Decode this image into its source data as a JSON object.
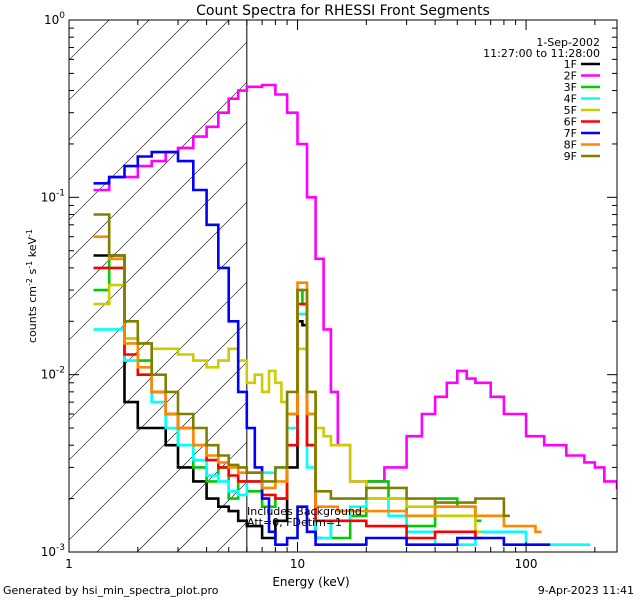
{
  "chart_data": {
    "type": "line",
    "title": "Count Spectra for RHESSI Front Segments",
    "xlabel": "Energy (keV)",
    "ylabel_main": "counts cm",
    "ylabel_sup1": "-2",
    "ylabel_mid": " s",
    "ylabel_sup2": "-1",
    "ylabel_end": " keV",
    "ylabel_sup3": "-1",
    "xscale": "log",
    "yscale": "log",
    "xlim": [
      1,
      250
    ],
    "ylim": [
      0.001,
      1
    ],
    "x_ticks": [
      {
        "value": 1,
        "label": "1"
      },
      {
        "value": 10,
        "label": "10"
      },
      {
        "value": 100,
        "label": "100"
      }
    ],
    "y_ticks": [
      {
        "value": 0.001,
        "base": "10",
        "exp": "-3"
      },
      {
        "value": 0.01,
        "base": "10",
        "exp": "-2"
      },
      {
        "value": 0.1,
        "base": "10",
        "exp": "-1"
      },
      {
        "value": 1,
        "base": "10",
        "exp": "0"
      }
    ],
    "date": "1-Sep-2002",
    "time_range": "11:27:00 to 11:28:00",
    "attenuator_boundary_kev": 6,
    "annotation_line1": "Includes Background",
    "annotation_line2": "Att=0, FDetim=1",
    "series": [
      {
        "name": "1F",
        "color": "#000000",
        "x": [
          1.28,
          1.5,
          1.75,
          2.0,
          2.3,
          2.65,
          3.0,
          3.5,
          4.0,
          4.5,
          5.0,
          5.5,
          6.0,
          7.0,
          8.0,
          9.0,
          10.0,
          10.5,
          11.0,
          12.0
        ],
        "y": [
          0.047,
          0.047,
          0.007,
          0.005,
          0.005,
          0.004,
          0.003,
          0.0025,
          0.002,
          0.0018,
          0.0017,
          0.0015,
          0.0014,
          0.0012,
          0.0015,
          0.003,
          0.02,
          0.019,
          0.004,
          0.0012
        ]
      },
      {
        "name": "2F",
        "color": "#ff00ff",
        "x": [
          1.28,
          1.5,
          1.75,
          2.0,
          2.3,
          2.65,
          3.0,
          3.5,
          4.0,
          4.5,
          5.0,
          5.5,
          6.0,
          7.0,
          8.0,
          9.0,
          10.0,
          11.0,
          12.0,
          13.0,
          14.0,
          15.0,
          17.0,
          20.0,
          24.0,
          30.0,
          35.0,
          40.0,
          45.0,
          50.0,
          55.0,
          60.0,
          70.0,
          80.0,
          100.0,
          120.0,
          150.0,
          180.0,
          200.0,
          220.0,
          250.0
        ],
        "y": [
          0.11,
          0.13,
          0.13,
          0.15,
          0.16,
          0.18,
          0.19,
          0.22,
          0.25,
          0.3,
          0.36,
          0.4,
          0.42,
          0.43,
          0.38,
          0.3,
          0.2,
          0.1,
          0.045,
          0.018,
          0.008,
          0.004,
          0.0025,
          0.0025,
          0.003,
          0.0045,
          0.006,
          0.0075,
          0.009,
          0.0105,
          0.0095,
          0.009,
          0.0075,
          0.006,
          0.0045,
          0.004,
          0.0035,
          0.0032,
          0.003,
          0.0025,
          0.0023
        ]
      },
      {
        "name": "3F",
        "color": "#00cc00",
        "x": [
          1.28,
          1.5,
          1.75,
          2.0,
          2.3,
          2.65,
          3.0,
          3.5,
          4.0,
          4.5,
          5.0,
          5.5,
          6.0,
          7.0,
          8.0,
          9.0,
          10.0,
          10.5,
          11.0,
          12.0,
          14.0,
          17.0,
          20.0,
          25.0,
          30.0,
          40.0,
          50.0,
          60.0
        ],
        "y": [
          0.03,
          0.045,
          0.016,
          0.012,
          0.008,
          0.006,
          0.004,
          0.003,
          0.0025,
          0.003,
          0.002,
          0.0025,
          0.0022,
          0.0018,
          0.002,
          0.006,
          0.03,
          0.025,
          0.006,
          0.0015,
          0.0012,
          0.0016,
          0.0025,
          0.002,
          0.0014,
          0.002,
          0.0018,
          0.0015
        ]
      },
      {
        "name": "4F",
        "color": "#00ffff",
        "x": [
          1.28,
          1.5,
          1.75,
          2.0,
          2.3,
          2.65,
          3.0,
          3.5,
          4.0,
          4.5,
          5.0,
          5.5,
          6.0,
          7.0,
          8.0,
          9.0,
          10.0,
          11.0,
          12.0,
          14.0,
          17.0,
          20.0,
          25.0,
          30.0,
          40.0,
          60.0,
          100.0,
          150.0,
          180.0
        ],
        "y": [
          0.018,
          0.018,
          0.012,
          0.01,
          0.007,
          0.005,
          0.004,
          0.0033,
          0.0027,
          0.0025,
          0.0022,
          0.0021,
          0.0025,
          0.0028,
          0.003,
          0.005,
          0.022,
          0.003,
          0.0012,
          0.0015,
          0.0018,
          0.002,
          0.0016,
          0.0013,
          0.0011,
          0.0013,
          0.0011,
          0.0011,
          0.0011
        ]
      },
      {
        "name": "5F",
        "color": "#cccc00",
        "x": [
          1.28,
          1.5,
          1.75,
          2.0,
          2.3,
          2.65,
          3.0,
          3.5,
          4.0,
          4.5,
          5.0,
          5.5,
          6.0,
          6.5,
          7.0,
          7.5,
          8.0,
          8.5,
          9.0,
          10.0,
          11.0,
          12.0,
          13.0,
          14.0,
          17.0,
          20.0,
          30.0,
          40.0,
          60.0
        ],
        "y": [
          0.025,
          0.032,
          0.016,
          0.015,
          0.014,
          0.014,
          0.013,
          0.012,
          0.011,
          0.012,
          0.014,
          0.012,
          0.009,
          0.01,
          0.008,
          0.0105,
          0.009,
          0.007,
          0.006,
          0.014,
          0.008,
          0.005,
          0.0045,
          0.004,
          0.0025,
          0.002,
          0.0018,
          0.0016,
          0.0013
        ]
      },
      {
        "name": "6F",
        "color": "#ff0000",
        "x": [
          1.28,
          1.5,
          1.75,
          2.0,
          2.3,
          2.65,
          3.0,
          3.5,
          4.0,
          4.5,
          5.0,
          5.5,
          6.0,
          7.0,
          8.0,
          9.0,
          10.0,
          11.0,
          12.0,
          15.0,
          20.0,
          25.0,
          30.0,
          40.0,
          60.0
        ],
        "y": [
          0.04,
          0.04,
          0.013,
          0.01,
          0.008,
          0.006,
          0.005,
          0.004,
          0.0033,
          0.003,
          0.0027,
          0.0025,
          0.0025,
          0.0021,
          0.002,
          0.004,
          0.025,
          0.004,
          0.0015,
          0.0015,
          0.0014,
          0.0014,
          0.0012,
          0.0013,
          0.0012
        ]
      },
      {
        "name": "7F",
        "color": "#0000ff",
        "x": [
          1.28,
          1.5,
          1.75,
          2.0,
          2.3,
          2.65,
          3.0,
          3.5,
          4.0,
          4.5,
          5.0,
          5.5,
          6.0,
          6.5,
          7.0,
          7.5,
          8.0,
          9.0,
          10.0,
          11.0,
          12.0,
          14.0,
          20.0,
          30.0,
          50.0,
          80.0,
          120.0
        ],
        "y": [
          0.12,
          0.13,
          0.15,
          0.17,
          0.18,
          0.18,
          0.16,
          0.11,
          0.07,
          0.04,
          0.02,
          0.008,
          0.005,
          0.003,
          0.002,
          0.0013,
          0.0011,
          0.0012,
          0.0018,
          0.0013,
          0.0011,
          0.0011,
          0.0012,
          0.0011,
          0.0012,
          0.0011,
          0.0011
        ]
      },
      {
        "name": "8F",
        "color": "#ff8800",
        "x": [
          1.28,
          1.5,
          1.75,
          2.0,
          2.3,
          2.65,
          3.0,
          3.5,
          4.0,
          4.5,
          5.0,
          5.5,
          6.0,
          7.0,
          8.0,
          9.0,
          10.0,
          11.0,
          12.0,
          15.0,
          20.0,
          30.0,
          40.0,
          60.0,
          80.0,
          110.0
        ],
        "y": [
          0.06,
          0.045,
          0.015,
          0.011,
          0.008,
          0.006,
          0.005,
          0.004,
          0.0035,
          0.0032,
          0.003,
          0.0028,
          0.0028,
          0.0023,
          0.0025,
          0.006,
          0.033,
          0.006,
          0.0018,
          0.0017,
          0.0017,
          0.0016,
          0.0018,
          0.0016,
          0.0014,
          0.0013
        ]
      },
      {
        "name": "9F",
        "color": "#808000",
        "x": [
          1.28,
          1.5,
          1.75,
          2.0,
          2.3,
          2.65,
          3.0,
          3.5,
          4.0,
          4.5,
          5.0,
          5.5,
          6.0,
          7.0,
          8.0,
          9.0,
          10.0,
          11.0,
          12.0,
          14.0,
          20.0,
          30.0,
          40.0,
          60.0,
          80.0
        ],
        "y": [
          0.08,
          0.047,
          0.02,
          0.015,
          0.01,
          0.008,
          0.006,
          0.005,
          0.004,
          0.0035,
          0.0031,
          0.003,
          0.0028,
          0.0025,
          0.003,
          0.008,
          0.03,
          0.008,
          0.0022,
          0.002,
          0.0023,
          0.002,
          0.0019,
          0.002,
          0.0016
        ]
      }
    ]
  },
  "footer": {
    "left": "Generated by hsi_min_spectra_plot.pro",
    "right": "9-Apr-2023 11:41"
  }
}
